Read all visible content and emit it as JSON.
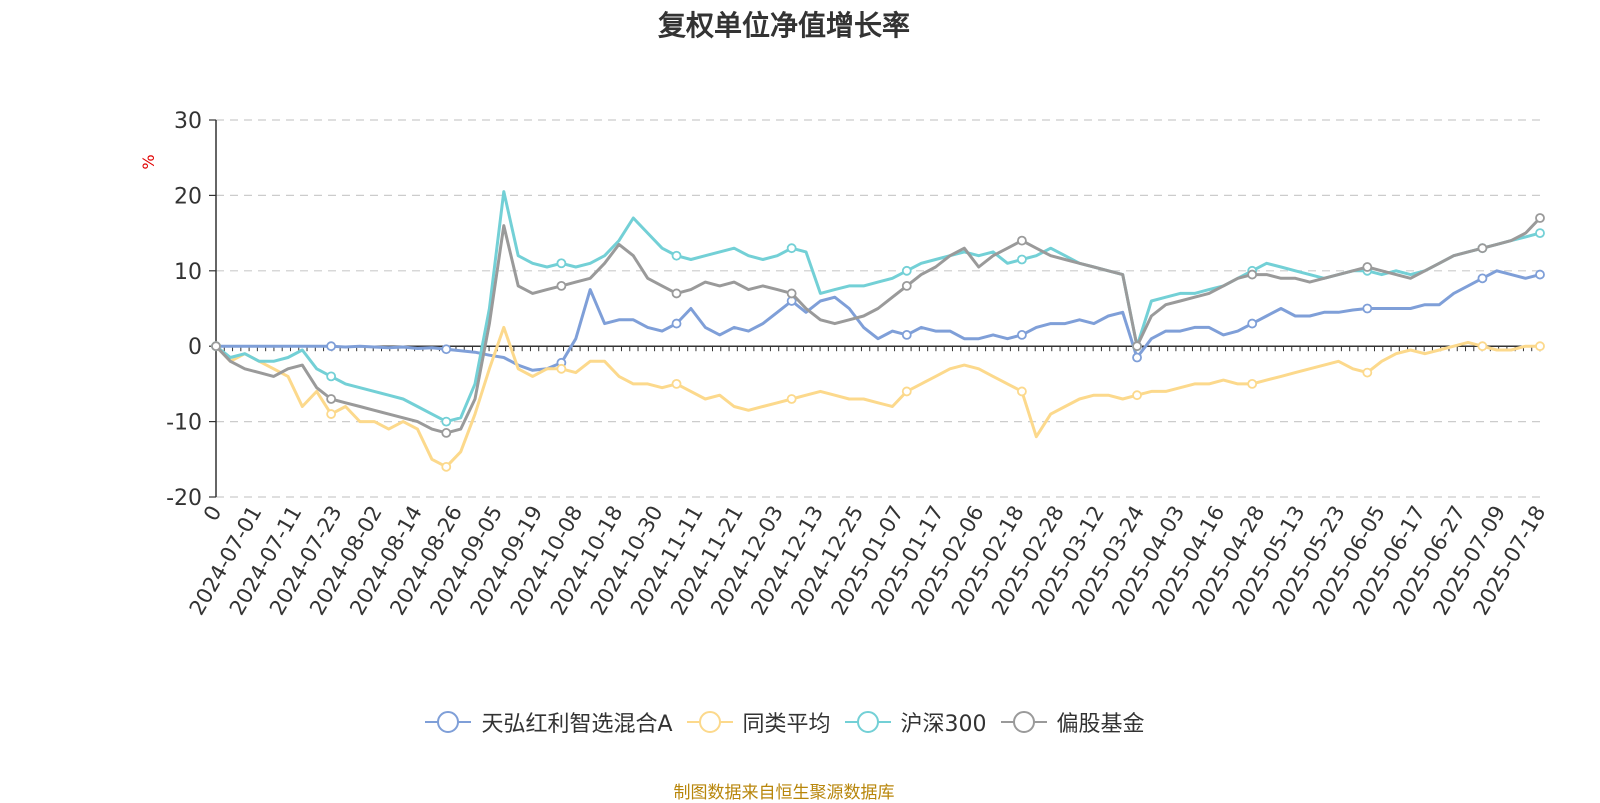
{
  "chart_data": {
    "type": "line",
    "title": "复权单位净值增长率",
    "ylabel": "%",
    "ylim": [
      -20,
      30
    ],
    "yticks": [
      30,
      20,
      10,
      0,
      -10,
      -20
    ],
    "grid": true,
    "legend_position": "bottom",
    "x_ticklabels": [
      "0",
      "2024-07-01",
      "2024-07-11",
      "2024-07-23",
      "2024-08-02",
      "2024-08-14",
      "2024-08-26",
      "2024-09-05",
      "2024-09-19",
      "2024-10-08",
      "2024-10-18",
      "2024-10-30",
      "2024-11-11",
      "2024-11-21",
      "2024-12-03",
      "2024-12-13",
      "2024-12-25",
      "2025-01-07",
      "2025-01-17",
      "2025-02-06",
      "2025-02-18",
      "2025-02-28",
      "2025-03-12",
      "2025-03-24",
      "2025-04-03",
      "2025-04-16",
      "2025-04-28",
      "2025-05-13",
      "2025-05-23",
      "2025-06-05",
      "2025-06-17",
      "2025-06-27",
      "2025-07-09",
      "2025-07-18"
    ],
    "x": [
      0,
      3,
      6,
      9,
      12,
      15,
      18,
      21,
      24,
      27,
      30,
      33,
      36,
      39,
      42,
      45,
      48,
      51,
      54,
      57,
      60,
      63,
      66,
      69,
      72,
      75,
      78,
      81,
      84,
      87,
      90,
      93,
      96,
      99,
      102,
      105,
      108,
      111,
      114,
      117,
      120,
      123,
      126,
      129,
      132,
      135,
      138,
      141,
      144,
      147,
      150,
      153,
      156,
      159,
      162,
      165,
      168,
      171,
      174,
      177,
      180,
      183,
      186,
      189,
      192,
      195,
      198,
      201,
      204,
      207,
      210,
      213,
      216,
      219,
      222,
      225,
      228,
      231,
      234,
      237,
      240,
      243,
      246,
      249,
      252,
      255,
      258,
      261,
      264,
      267,
      270,
      273,
      276
    ],
    "x_max": 276,
    "series": [
      {
        "name": "天弘红利智选混合A",
        "color": "#7f9fd8",
        "values": [
          0,
          0,
          0,
          0,
          0,
          0,
          0,
          0,
          0,
          -0.1,
          0,
          -0.1,
          -0.2,
          -0.1,
          -0.3,
          -0.2,
          -0.4,
          -0.6,
          -0.8,
          -1.2,
          -1.5,
          -2.5,
          -3.2,
          -3.0,
          -2.2,
          1,
          7.5,
          3,
          3.5,
          3.5,
          2.5,
          2,
          3,
          5,
          2.5,
          1.5,
          2.5,
          2,
          3,
          4.5,
          6,
          4.5,
          6,
          6.5,
          5,
          2.5,
          1,
          2,
          1.5,
          2.5,
          2,
          2,
          1,
          1,
          1.5,
          1,
          1.5,
          2.5,
          3,
          3,
          3.5,
          3,
          4,
          4.5,
          -1.5,
          1,
          2,
          2,
          2.5,
          2.5,
          1.5,
          2,
          3,
          4,
          5,
          4,
          4,
          4.5,
          4.5,
          4.8,
          5,
          5,
          5,
          5,
          5.5,
          5.5,
          7,
          8,
          9,
          10,
          9.5,
          9,
          9.5
        ]
      },
      {
        "name": "同类平均",
        "color": "#fcd98c",
        "values": [
          0,
          -2,
          -1,
          -2,
          -3,
          -4,
          -8,
          -6,
          -9,
          -8,
          -10,
          -10,
          -11,
          -10,
          -11,
          -15,
          -16,
          -14,
          -9,
          -3,
          2.5,
          -3,
          -4,
          -3,
          -3,
          -3.5,
          -2,
          -2,
          -4,
          -5,
          -5,
          -5.5,
          -5,
          -6,
          -7,
          -6.5,
          -8,
          -8.5,
          -8,
          -7.5,
          -7,
          -6.5,
          -6,
          -6.5,
          -7,
          -7,
          -7.5,
          -8,
          -6,
          -5,
          -4,
          -3,
          -2.5,
          -3,
          -4,
          -5,
          -6,
          -12,
          -9,
          -8,
          -7,
          -6.5,
          -6.5,
          -7,
          -6.5,
          -6,
          -6,
          -5.5,
          -5,
          -5,
          -4.5,
          -5,
          -5,
          -4.5,
          -4,
          -3.5,
          -3,
          -2.5,
          -2,
          -3,
          -3.5,
          -2,
          -1,
          -0.5,
          -1,
          -0.5,
          0,
          0.5,
          0,
          -0.5,
          -0.5,
          0,
          0
        ]
      },
      {
        "name": "沪深300",
        "color": "#73d0d6",
        "values": [
          0,
          -1.5,
          -1,
          -2,
          -2,
          -1.5,
          -0.5,
          -3,
          -4,
          -5,
          -5.5,
          -6,
          -6.5,
          -7,
          -8,
          -9,
          -10,
          -9.5,
          -5,
          5,
          20.5,
          12,
          11,
          10.5,
          11,
          10.5,
          11,
          12,
          14,
          17,
          15,
          13,
          12,
          11.5,
          12,
          12.5,
          13,
          12,
          11.5,
          12,
          13,
          12.5,
          7,
          7.5,
          8,
          8,
          8.5,
          9,
          10,
          11,
          11.5,
          12,
          12.5,
          12,
          12.5,
          11,
          11.5,
          12,
          13,
          12,
          11,
          10.5,
          10,
          9.5,
          0,
          6,
          6.5,
          7,
          7,
          7.5,
          8,
          9,
          10,
          11,
          10.5,
          10,
          9.5,
          9,
          9.5,
          10,
          10,
          9.5,
          10,
          9.5,
          10,
          11,
          12,
          12.5,
          13,
          13.5,
          14,
          14.5,
          15
        ]
      },
      {
        "name": "偏股基金",
        "color": "#9a9a9a",
        "values": [
          0,
          -2,
          -3,
          -3.5,
          -4,
          -3,
          -2.5,
          -5.5,
          -7,
          -7.5,
          -8,
          -8.5,
          -9,
          -9.5,
          -10,
          -11,
          -11.5,
          -11,
          -7,
          3,
          16,
          8,
          7,
          7.5,
          8,
          8.5,
          9,
          11,
          13.5,
          12,
          9,
          8,
          7,
          7.5,
          8.5,
          8,
          8.5,
          7.5,
          8,
          7.5,
          7,
          5,
          3.5,
          3,
          3.5,
          4,
          5,
          6.5,
          8,
          9.5,
          10.5,
          12,
          13,
          10.5,
          12,
          13,
          14,
          13,
          12,
          11.5,
          11,
          10.5,
          10,
          9.5,
          0,
          4,
          5.5,
          6,
          6.5,
          7,
          8,
          9,
          9.5,
          9.5,
          9,
          9,
          8.5,
          9,
          9.5,
          10,
          10.5,
          10,
          9.5,
          9,
          10,
          11,
          12,
          12.5,
          13,
          13.5,
          14,
          15,
          17
        ]
      }
    ],
    "source": "制图数据来自恒生聚源数据库"
  }
}
